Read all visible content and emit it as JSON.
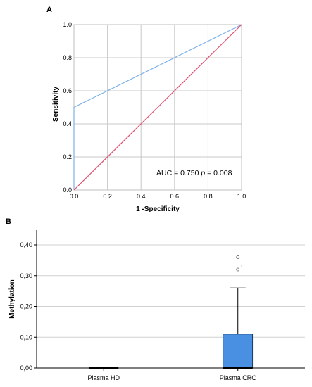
{
  "chart_data": [
    {
      "panel_label": "A",
      "type": "line",
      "subtype": "roc",
      "xlabel": "1 -Specificity",
      "ylabel": "Sensitivity",
      "xlim": [
        0.0,
        1.0
      ],
      "ylim": [
        0.0,
        1.0
      ],
      "x_ticks": [
        "0.0",
        "0.2",
        "0.4",
        "0.6",
        "0.8",
        "1.0"
      ],
      "y_ticks": [
        "0.0",
        "0.2",
        "0.4",
        "0.6",
        "0.8",
        "1.0"
      ],
      "grid": true,
      "annotation": {
        "auc_text": "AUC = 0.750 ",
        "p_text": "p",
        "p_value_text": " = 0.008"
      },
      "series": [
        {
          "color": "#7fb2e8",
          "points": [
            [
              0,
              0
            ],
            [
              0,
              0.5
            ],
            [
              1,
              1
            ]
          ]
        },
        {
          "color": "#e0506e",
          "points": [
            [
              0,
              0
            ],
            [
              1,
              1
            ]
          ]
        }
      ]
    },
    {
      "panel_label": "B",
      "type": "bar",
      "subtype": "boxplot",
      "categories": [
        "Plasma HD",
        "Plasma CRC"
      ],
      "ylabel": "Methylation",
      "ylim": [
        0.0,
        0.4
      ],
      "y_ticks": [
        "0,00",
        "0,10",
        "0,20",
        "0,30",
        "0,40"
      ],
      "grid": true,
      "box_color": "#4a90e2",
      "boxes": [
        {
          "category": "Plasma HD",
          "q1": 0.0,
          "median": 0.0,
          "q3": 0.0,
          "whisker_low": 0.0,
          "whisker_high": 0.0,
          "outliers": []
        },
        {
          "category": "Plasma CRC",
          "q1": 0.0,
          "median": 0.0,
          "q3": 0.11,
          "whisker_low": 0.0,
          "whisker_high": 0.26,
          "outliers": [
            0.36,
            0.32
          ]
        }
      ],
      "outlier_labels": [
        "",
        "ˈ"
      ]
    }
  ]
}
